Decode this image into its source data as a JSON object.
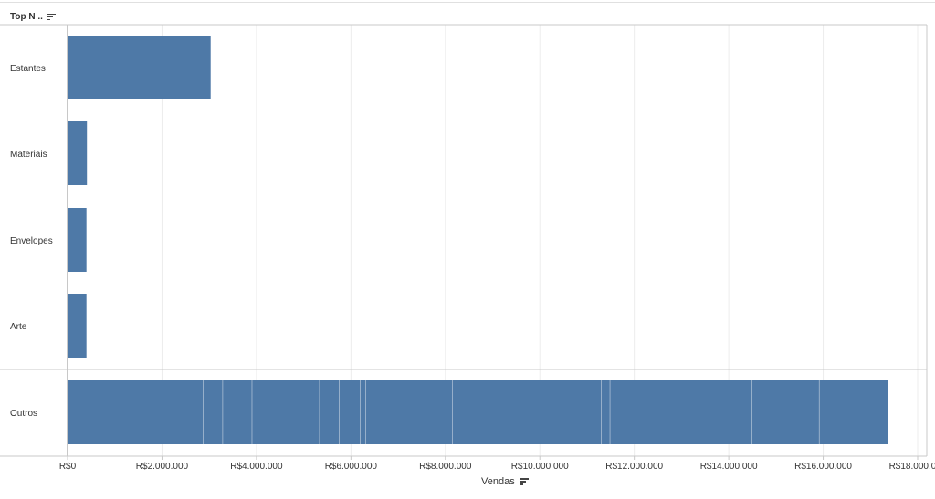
{
  "header": {
    "title": "Top N .."
  },
  "x_axis": {
    "title": "Vendas"
  },
  "icons": {
    "header_sort": "sort-descending-icon",
    "axis_sort": "sort-descending-icon"
  },
  "colors": {
    "bar": "#4e79a7",
    "grid": "#ececec",
    "border": "#c8c8c8",
    "segment_divider": "#dfe6ee"
  },
  "chart_data": {
    "type": "bar",
    "orientation": "horizontal",
    "title": "",
    "xlabel": "Vendas",
    "ylabel": "Top N ..",
    "xlim": [
      0,
      18000000
    ],
    "x_ticks": [
      0,
      2000000,
      4000000,
      6000000,
      8000000,
      10000000,
      12000000,
      14000000,
      16000000,
      18000000
    ],
    "x_tick_labels": [
      "R$0",
      "R$2.000.000",
      "R$4.000.000",
      "R$6.000.000",
      "R$8.000.000",
      "R$10.000.000",
      "R$12.000.000",
      "R$14.000.000",
      "R$16.000.000",
      "R$18.000.000"
    ],
    "grid": true,
    "categories": [
      "Estantes",
      "Materiais",
      "Envelopes",
      "Arte",
      "Outros"
    ],
    "values": [
      3030000,
      410000,
      400000,
      400000,
      17400000
    ],
    "stacked_segments": {
      "Outros": [
        2880000,
        410000,
        620000,
        1430000,
        420000,
        440000,
        120000,
        1830000,
        3160000,
        180000,
        3010000,
        1420000,
        1460000
      ]
    }
  }
}
